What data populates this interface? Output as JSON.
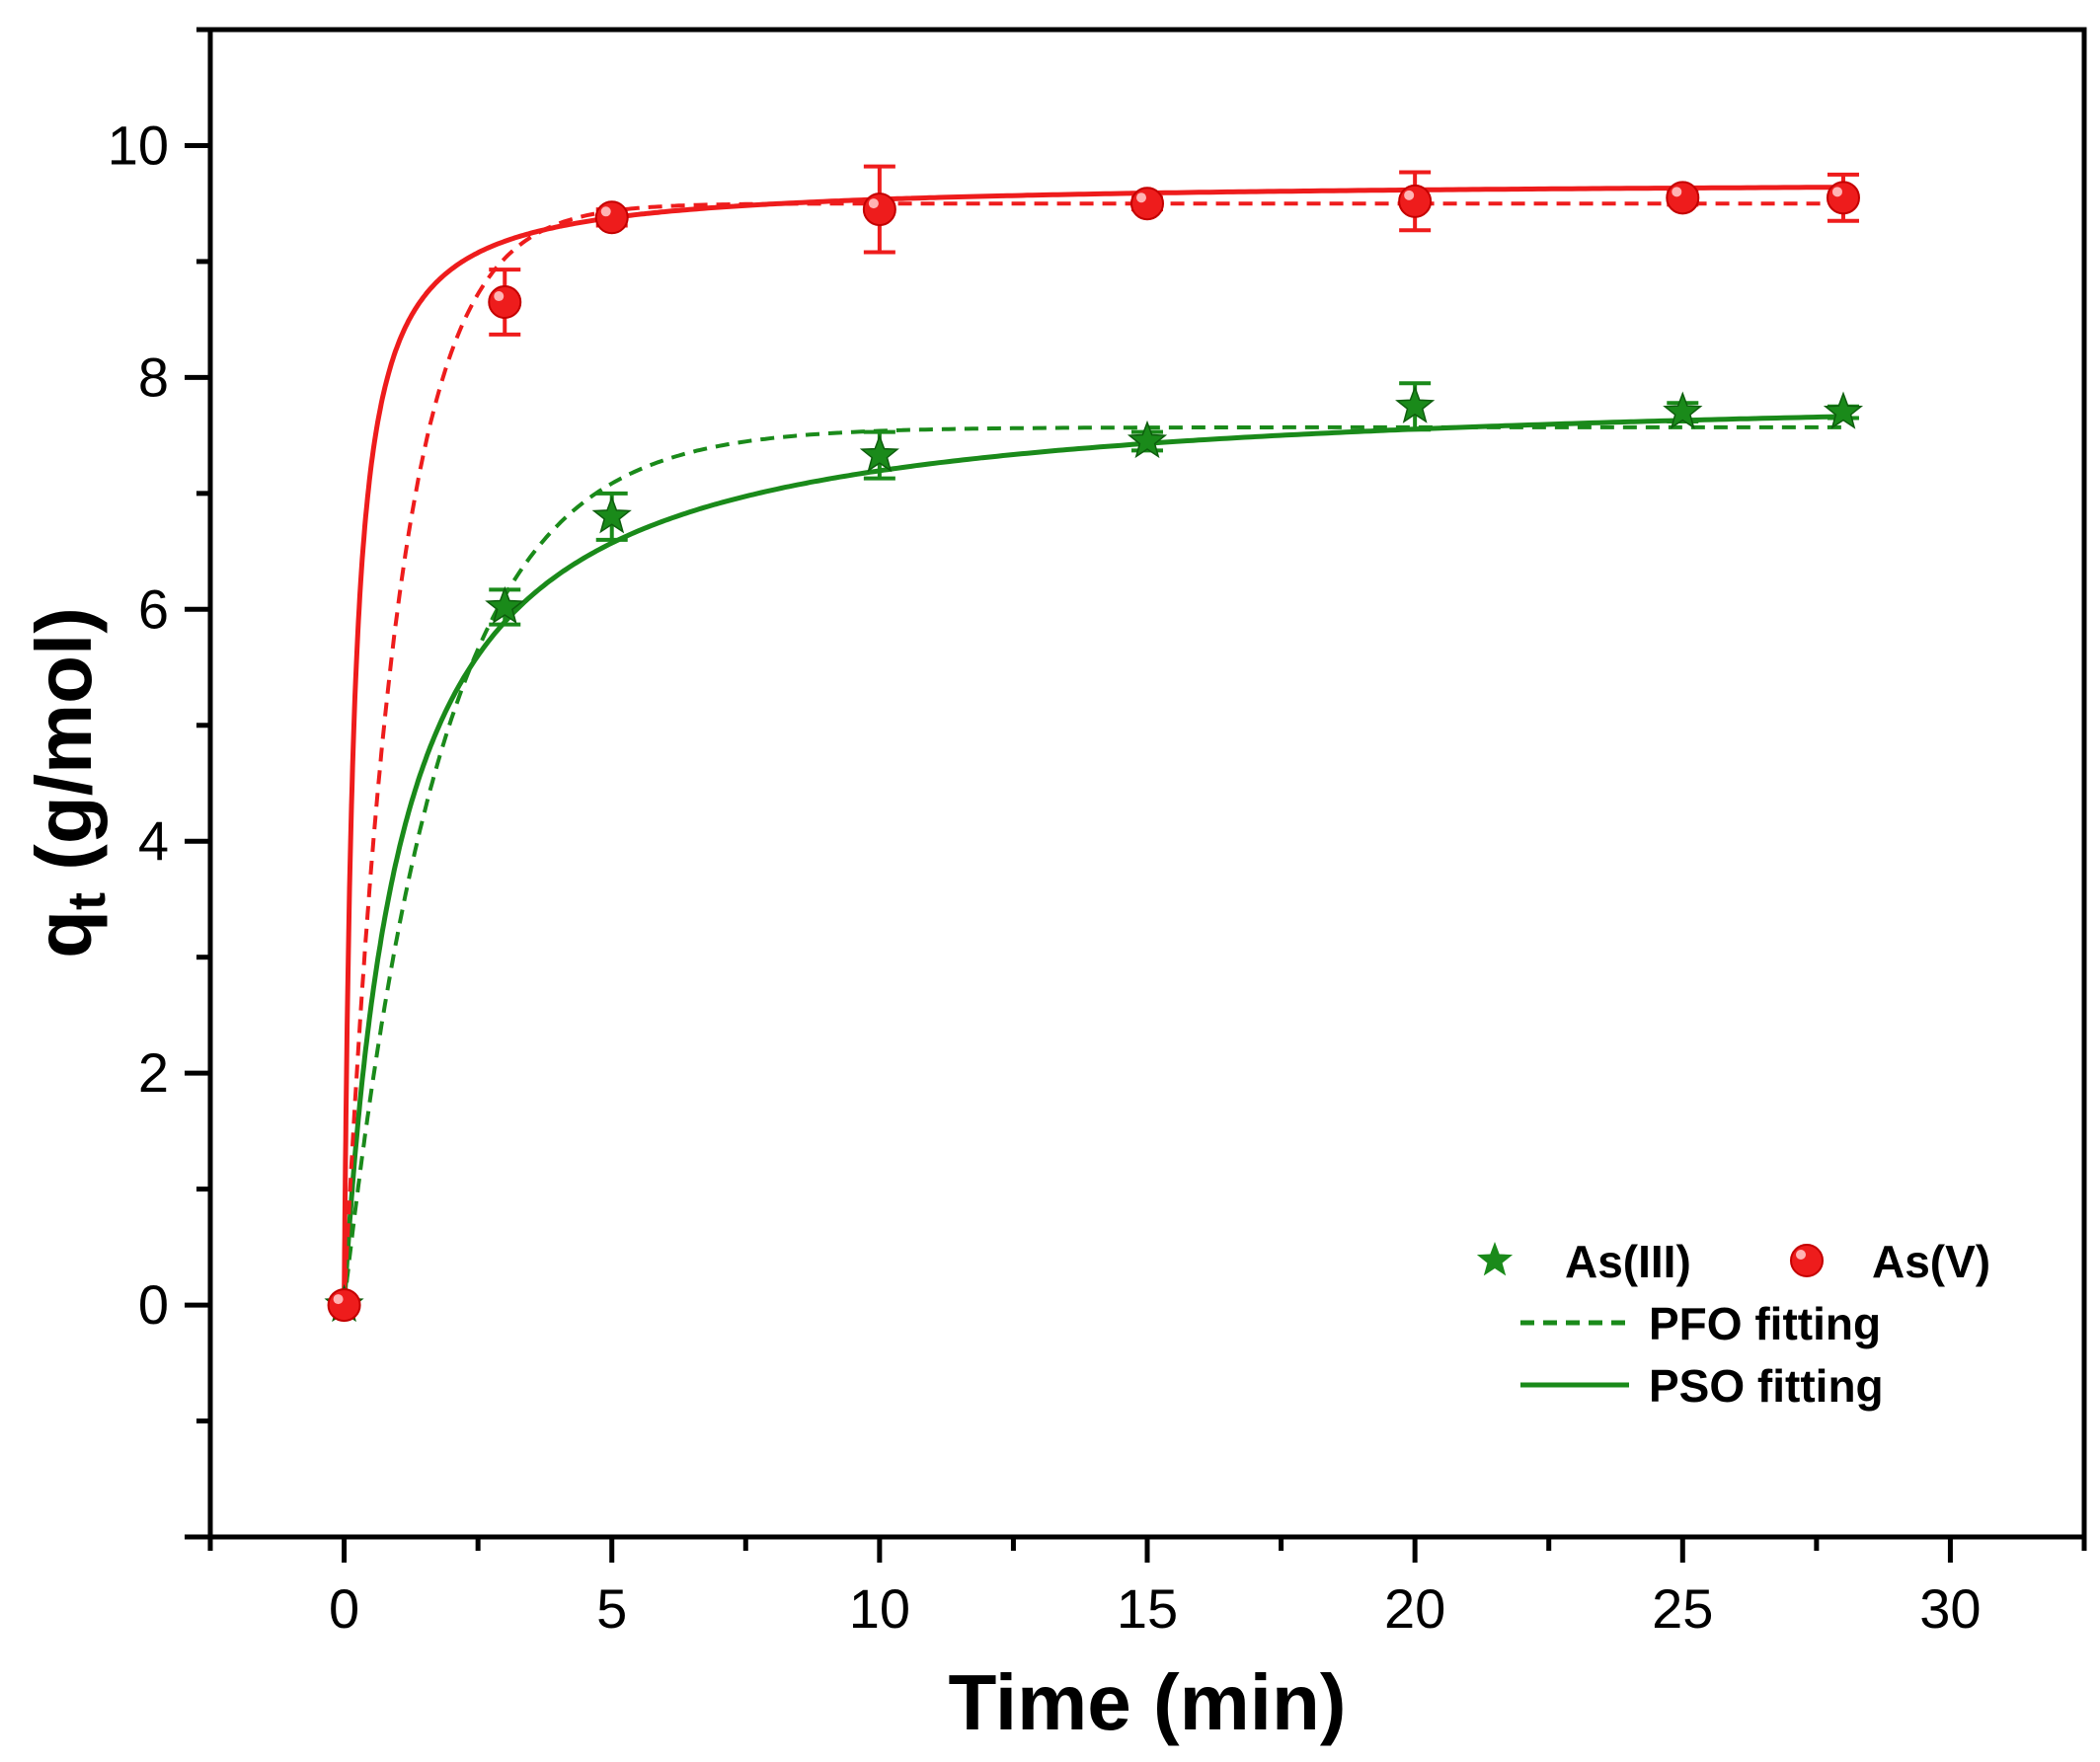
{
  "chart_data": {
    "type": "scatter",
    "title": "",
    "xlabel": "Time (min)",
    "ylabel_main": "q",
    "ylabel_sub": "t",
    "ylabel_rest": " (g/mol)",
    "xlim": [
      -2.5,
      32.5
    ],
    "ylim": [
      -2,
      11
    ],
    "xticks": [
      0,
      5,
      10,
      15,
      20,
      25,
      30
    ],
    "yticks": [
      0,
      2,
      4,
      6,
      8,
      10
    ],
    "xtick_labels": [
      "0",
      "5",
      "10",
      "15",
      "20",
      "25",
      "30"
    ],
    "ytick_labels": [
      "0",
      "2",
      "4",
      "6",
      "8",
      "10"
    ],
    "grid": false,
    "legend_position": "bottom-right",
    "legend": {
      "as3_label": "As(III)",
      "as5_label": "As(V)",
      "pfo_label": "PFO fitting",
      "pso_label": "PSO fitting"
    },
    "series": [
      {
        "name": "As(III)",
        "marker": "star",
        "color": "#1a8a1a",
        "x": [
          0,
          3,
          5,
          10,
          15,
          20,
          25,
          28
        ],
        "y": [
          0,
          6.02,
          6.8,
          7.33,
          7.45,
          7.75,
          7.7,
          7.7
        ],
        "err": [
          0,
          0.15,
          0.2,
          0.2,
          0.08,
          0.2,
          0.08,
          0.05
        ],
        "pfo": {
          "qe": 7.57,
          "k1": 0.55
        },
        "pso": {
          "qe": 7.95,
          "k2": 0.12
        }
      },
      {
        "name": "As(V)",
        "marker": "circle",
        "color": "#ee1c1c",
        "x": [
          0,
          3,
          5,
          10,
          15,
          20,
          25,
          28
        ],
        "y": [
          0,
          8.65,
          9.38,
          9.45,
          9.5,
          9.52,
          9.55,
          9.55
        ],
        "err": [
          0,
          0.28,
          0.07,
          0.37,
          0.05,
          0.25,
          0.06,
          0.2
        ],
        "pfo": {
          "qe": 9.5,
          "k1": 1.0
        },
        "pso": {
          "qe": 9.7,
          "k2": 0.6
        }
      }
    ],
    "colors": {
      "as3": "#1a8a1a",
      "as5": "#ee1c1c",
      "axis": "#000000"
    }
  }
}
